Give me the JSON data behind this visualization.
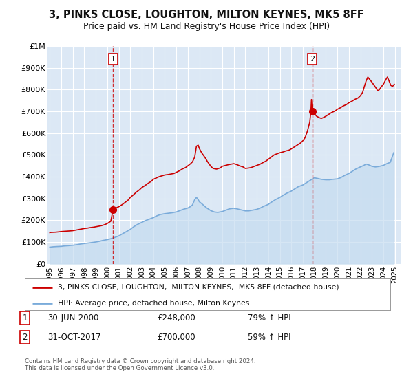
{
  "title": "3, PINKS CLOSE, LOUGHTON, MILTON KEYNES, MK5 8FF",
  "subtitle": "Price paid vs. HM Land Registry's House Price Index (HPI)",
  "bg_color": "#dce8f5",
  "fig_bg_color": "#ffffff",
  "red_color": "#cc0000",
  "blue_color": "#7aabda",
  "blue_fill_color": "#c5dcf0",
  "grid_color": "#ffffff",
  "marker1_date": 2000.5,
  "marker1_value": 248000,
  "marker1_label": "30-JUN-2000",
  "marker1_price": "£248,000",
  "marker1_pct": "79% ↑ HPI",
  "marker2_date": 2017.83,
  "marker2_value": 700000,
  "marker2_label": "31-OCT-2017",
  "marker2_price": "£700,000",
  "marker2_pct": "59% ↑ HPI",
  "xmin": 1994.8,
  "xmax": 2025.5,
  "ymin": 0,
  "ymax": 1000000,
  "yticks": [
    0,
    100000,
    200000,
    300000,
    400000,
    500000,
    600000,
    700000,
    800000,
    900000,
    1000000
  ],
  "ytick_labels": [
    "£0",
    "£100K",
    "£200K",
    "£300K",
    "£400K",
    "£500K",
    "£600K",
    "£700K",
    "£800K",
    "£900K",
    "£1M"
  ],
  "xticks": [
    1995,
    1996,
    1997,
    1998,
    1999,
    2000,
    2001,
    2002,
    2003,
    2004,
    2005,
    2006,
    2007,
    2008,
    2009,
    2010,
    2011,
    2012,
    2013,
    2014,
    2015,
    2016,
    2017,
    2018,
    2019,
    2020,
    2021,
    2022,
    2023,
    2024,
    2025
  ],
  "legend_label_red": "3, PINKS CLOSE, LOUGHTON,  MILTON KEYNES,  MK5 8FF (detached house)",
  "legend_label_blue": "HPI: Average price, detached house, Milton Keynes",
  "footnote": "Contains HM Land Registry data © Crown copyright and database right 2024.\nThis data is licensed under the Open Government Licence v3.0.",
  "red_hpi_data": [
    [
      1995.0,
      143000
    ],
    [
      1995.1,
      144000
    ],
    [
      1995.3,
      144500
    ],
    [
      1995.5,
      145000
    ],
    [
      1995.7,
      146000
    ],
    [
      1996.0,
      148000
    ],
    [
      1996.3,
      149000
    ],
    [
      1996.5,
      150000
    ],
    [
      1996.8,
      151000
    ],
    [
      1997.0,
      152000
    ],
    [
      1997.3,
      155000
    ],
    [
      1997.5,
      157000
    ],
    [
      1997.8,
      160000
    ],
    [
      1998.0,
      162000
    ],
    [
      1998.3,
      164000
    ],
    [
      1998.5,
      166000
    ],
    [
      1998.8,
      168000
    ],
    [
      1999.0,
      170000
    ],
    [
      1999.2,
      172000
    ],
    [
      1999.5,
      175000
    ],
    [
      1999.8,
      180000
    ],
    [
      2000.0,
      185000
    ],
    [
      2000.3,
      195000
    ],
    [
      2000.5,
      248000
    ],
    [
      2000.7,
      255000
    ],
    [
      2001.0,
      262000
    ],
    [
      2001.3,
      272000
    ],
    [
      2001.5,
      280000
    ],
    [
      2001.8,
      292000
    ],
    [
      2002.0,
      305000
    ],
    [
      2002.3,
      318000
    ],
    [
      2002.5,
      328000
    ],
    [
      2002.8,
      340000
    ],
    [
      2003.0,
      350000
    ],
    [
      2003.3,
      360000
    ],
    [
      2003.5,
      368000
    ],
    [
      2003.8,
      378000
    ],
    [
      2004.0,
      388000
    ],
    [
      2004.3,
      395000
    ],
    [
      2004.5,
      400000
    ],
    [
      2004.8,
      405000
    ],
    [
      2005.0,
      408000
    ],
    [
      2005.3,
      410000
    ],
    [
      2005.5,
      412000
    ],
    [
      2005.8,
      415000
    ],
    [
      2006.0,
      420000
    ],
    [
      2006.3,
      428000
    ],
    [
      2006.5,
      435000
    ],
    [
      2006.8,
      442000
    ],
    [
      2007.0,
      450000
    ],
    [
      2007.2,
      458000
    ],
    [
      2007.4,
      468000
    ],
    [
      2007.6,
      490000
    ],
    [
      2007.75,
      540000
    ],
    [
      2007.9,
      545000
    ],
    [
      2008.0,
      530000
    ],
    [
      2008.2,
      510000
    ],
    [
      2008.5,
      488000
    ],
    [
      2008.7,
      470000
    ],
    [
      2009.0,
      448000
    ],
    [
      2009.2,
      438000
    ],
    [
      2009.5,
      435000
    ],
    [
      2009.8,
      440000
    ],
    [
      2010.0,
      448000
    ],
    [
      2010.3,
      452000
    ],
    [
      2010.5,
      455000
    ],
    [
      2010.8,
      458000
    ],
    [
      2011.0,
      460000
    ],
    [
      2011.3,
      455000
    ],
    [
      2011.5,
      450000
    ],
    [
      2011.8,
      445000
    ],
    [
      2012.0,
      438000
    ],
    [
      2012.3,
      440000
    ],
    [
      2012.5,
      442000
    ],
    [
      2012.8,
      448000
    ],
    [
      2013.0,
      452000
    ],
    [
      2013.3,
      458000
    ],
    [
      2013.5,
      464000
    ],
    [
      2013.8,
      472000
    ],
    [
      2014.0,
      480000
    ],
    [
      2014.3,
      492000
    ],
    [
      2014.5,
      500000
    ],
    [
      2014.8,
      506000
    ],
    [
      2015.0,
      510000
    ],
    [
      2015.3,
      514000
    ],
    [
      2015.5,
      518000
    ],
    [
      2015.8,
      522000
    ],
    [
      2016.0,
      528000
    ],
    [
      2016.3,
      538000
    ],
    [
      2016.5,
      545000
    ],
    [
      2016.8,
      555000
    ],
    [
      2017.0,
      565000
    ],
    [
      2017.2,
      580000
    ],
    [
      2017.4,
      610000
    ],
    [
      2017.6,
      650000
    ],
    [
      2017.7,
      700000
    ],
    [
      2017.75,
      755000
    ],
    [
      2017.83,
      700000
    ],
    [
      2018.0,
      690000
    ],
    [
      2018.2,
      678000
    ],
    [
      2018.4,
      672000
    ],
    [
      2018.6,
      668000
    ],
    [
      2018.8,
      672000
    ],
    [
      2019.0,
      678000
    ],
    [
      2019.3,
      688000
    ],
    [
      2019.5,
      695000
    ],
    [
      2019.8,
      702000
    ],
    [
      2020.0,
      710000
    ],
    [
      2020.3,
      718000
    ],
    [
      2020.5,
      725000
    ],
    [
      2020.8,
      732000
    ],
    [
      2021.0,
      740000
    ],
    [
      2021.3,
      748000
    ],
    [
      2021.5,
      755000
    ],
    [
      2021.8,
      762000
    ],
    [
      2022.0,
      772000
    ],
    [
      2022.2,
      788000
    ],
    [
      2022.35,
      815000
    ],
    [
      2022.5,
      840000
    ],
    [
      2022.65,
      858000
    ],
    [
      2022.8,
      848000
    ],
    [
      2023.0,
      835000
    ],
    [
      2023.2,
      820000
    ],
    [
      2023.4,
      805000
    ],
    [
      2023.5,
      795000
    ],
    [
      2023.65,
      800000
    ],
    [
      2023.8,
      812000
    ],
    [
      2024.0,
      825000
    ],
    [
      2024.2,
      845000
    ],
    [
      2024.35,
      858000
    ],
    [
      2024.5,
      840000
    ],
    [
      2024.65,
      820000
    ],
    [
      2024.8,
      815000
    ],
    [
      2024.95,
      825000
    ]
  ],
  "blue_hpi_data": [
    [
      1995.0,
      76000
    ],
    [
      1995.3,
      78000
    ],
    [
      1995.6,
      79000
    ],
    [
      1996.0,
      80000
    ],
    [
      1996.3,
      82000
    ],
    [
      1996.6,
      83000
    ],
    [
      1997.0,
      85000
    ],
    [
      1997.3,
      87000
    ],
    [
      1997.6,
      90000
    ],
    [
      1998.0,
      93000
    ],
    [
      1998.3,
      95000
    ],
    [
      1998.6,
      97000
    ],
    [
      1999.0,
      100000
    ],
    [
      1999.3,
      103000
    ],
    [
      1999.6,
      107000
    ],
    [
      2000.0,
      111000
    ],
    [
      2000.3,
      115000
    ],
    [
      2000.6,
      120000
    ],
    [
      2001.0,
      128000
    ],
    [
      2001.3,
      137000
    ],
    [
      2001.6,
      146000
    ],
    [
      2002.0,
      158000
    ],
    [
      2002.3,
      170000
    ],
    [
      2002.6,
      180000
    ],
    [
      2003.0,
      190000
    ],
    [
      2003.3,
      198000
    ],
    [
      2003.6,
      204000
    ],
    [
      2004.0,
      212000
    ],
    [
      2004.3,
      220000
    ],
    [
      2004.6,
      226000
    ],
    [
      2005.0,
      230000
    ],
    [
      2005.3,
      232000
    ],
    [
      2005.6,
      234000
    ],
    [
      2006.0,
      238000
    ],
    [
      2006.3,
      244000
    ],
    [
      2006.6,
      250000
    ],
    [
      2007.0,
      256000
    ],
    [
      2007.2,
      262000
    ],
    [
      2007.4,
      270000
    ],
    [
      2007.6,
      295000
    ],
    [
      2007.75,
      305000
    ],
    [
      2007.9,
      295000
    ],
    [
      2008.0,
      285000
    ],
    [
      2008.3,
      272000
    ],
    [
      2008.6,
      258000
    ],
    [
      2009.0,
      244000
    ],
    [
      2009.3,
      238000
    ],
    [
      2009.6,
      236000
    ],
    [
      2010.0,
      240000
    ],
    [
      2010.3,
      246000
    ],
    [
      2010.6,
      252000
    ],
    [
      2011.0,
      255000
    ],
    [
      2011.3,
      252000
    ],
    [
      2011.6,
      248000
    ],
    [
      2012.0,
      243000
    ],
    [
      2012.3,
      243000
    ],
    [
      2012.6,
      246000
    ],
    [
      2013.0,
      250000
    ],
    [
      2013.3,
      256000
    ],
    [
      2013.6,
      264000
    ],
    [
      2014.0,
      273000
    ],
    [
      2014.3,
      284000
    ],
    [
      2014.6,
      294000
    ],
    [
      2015.0,
      305000
    ],
    [
      2015.3,
      315000
    ],
    [
      2015.6,
      324000
    ],
    [
      2016.0,
      334000
    ],
    [
      2016.3,
      344000
    ],
    [
      2016.6,
      354000
    ],
    [
      2017.0,
      362000
    ],
    [
      2017.3,
      372000
    ],
    [
      2017.6,
      382000
    ],
    [
      2017.83,
      390000
    ],
    [
      2018.0,
      395000
    ],
    [
      2018.3,
      392000
    ],
    [
      2018.6,
      388000
    ],
    [
      2019.0,
      386000
    ],
    [
      2019.3,
      386000
    ],
    [
      2019.6,
      388000
    ],
    [
      2020.0,
      390000
    ],
    [
      2020.3,
      396000
    ],
    [
      2020.6,
      405000
    ],
    [
      2021.0,
      415000
    ],
    [
      2021.3,
      425000
    ],
    [
      2021.6,
      435000
    ],
    [
      2022.0,
      445000
    ],
    [
      2022.3,
      452000
    ],
    [
      2022.5,
      458000
    ],
    [
      2022.7,
      455000
    ],
    [
      2023.0,
      448000
    ],
    [
      2023.3,
      445000
    ],
    [
      2023.6,
      447000
    ],
    [
      2024.0,
      452000
    ],
    [
      2024.3,
      460000
    ],
    [
      2024.6,
      466000
    ],
    [
      2024.9,
      510000
    ]
  ]
}
